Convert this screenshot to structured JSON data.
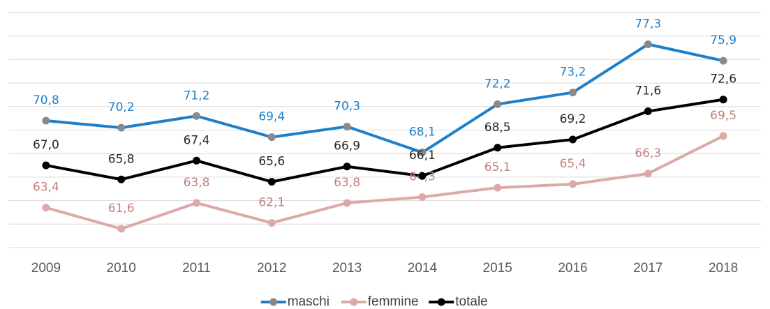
{
  "chart_data": {
    "type": "line",
    "categories": [
      "2009",
      "2010",
      "2011",
      "2012",
      "2013",
      "2014",
      "2015",
      "2016",
      "2017",
      "2018"
    ],
    "series": [
      {
        "name": "maschi",
        "color": "#1f7fc9",
        "marker_color": "#8a8a8a",
        "label_color": "#1f7fc9",
        "values": [
          70.8,
          70.2,
          71.2,
          69.4,
          70.3,
          68.1,
          72.2,
          73.2,
          77.3,
          75.9
        ],
        "value_labels": [
          "70,8",
          "70,2",
          "71,2",
          "69,4",
          "70,3",
          "68,1",
          "72,2",
          "73,2",
          "77,3",
          "75,9"
        ]
      },
      {
        "name": "femmine",
        "color": "#dbaaa7",
        "marker_color": "#dbaaa7",
        "label_color": "#c0807b",
        "values": [
          63.4,
          61.6,
          63.8,
          62.1,
          63.8,
          64.3,
          65.1,
          65.4,
          66.3,
          69.5
        ],
        "value_labels": [
          "63,4",
          "61,6",
          "63,8",
          "62,1",
          "63,8",
          "64,3",
          "65,1",
          "65,4",
          "66,3",
          "69,5"
        ]
      },
      {
        "name": "totale",
        "color": "#000000",
        "marker_color": "#000000",
        "label_color": "#262626",
        "values": [
          67.0,
          65.8,
          67.4,
          65.6,
          66.9,
          66.1,
          68.5,
          69.2,
          71.6,
          72.6
        ],
        "value_labels": [
          "67,0",
          "65,8",
          "67,4",
          "65,6",
          "66,9",
          "66,1",
          "68,5",
          "69,2",
          "71,6",
          "72,6"
        ]
      }
    ],
    "ylim": [
      60,
      80
    ],
    "yticks": [
      60,
      62,
      64,
      66,
      68,
      70,
      72,
      74,
      76,
      78,
      80
    ],
    "grid": true,
    "legend": "bottom"
  }
}
